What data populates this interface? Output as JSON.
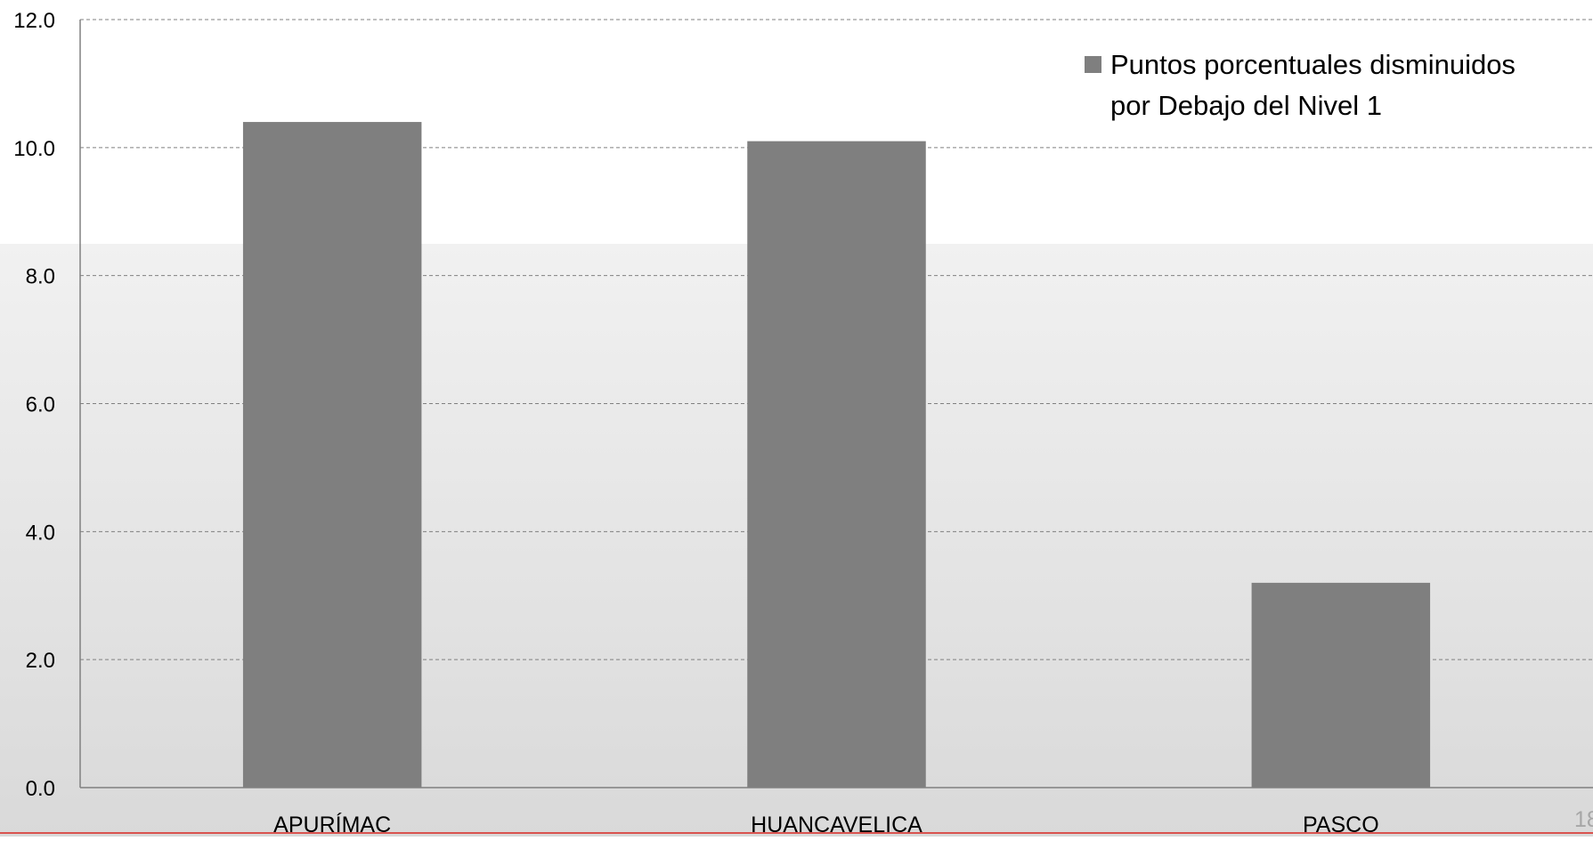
{
  "chart_data": {
    "type": "bar",
    "categories": [
      "APURÍMAC",
      "HUANCAVELICA",
      "PASCO"
    ],
    "series": [
      {
        "name": "Puntos porcentuales disminuidos por Debajo del Nivel 1",
        "values": [
          10.4,
          10.1,
          3.2
        ]
      }
    ],
    "ylim": [
      0,
      12
    ],
    "yticks": [
      "0.0",
      "2.0",
      "4.0",
      "6.0",
      "8.0",
      "10.0",
      "12.0"
    ],
    "grid": true,
    "legend": {
      "position": "top-right",
      "lines": [
        "Puntos porcentuales disminuidos",
        "por Debajo del Nivel 1"
      ]
    },
    "colors": {
      "bar": "#7f7f7f",
      "axis": "#808080",
      "grid": "#808080"
    }
  },
  "page": {
    "number": "18"
  }
}
